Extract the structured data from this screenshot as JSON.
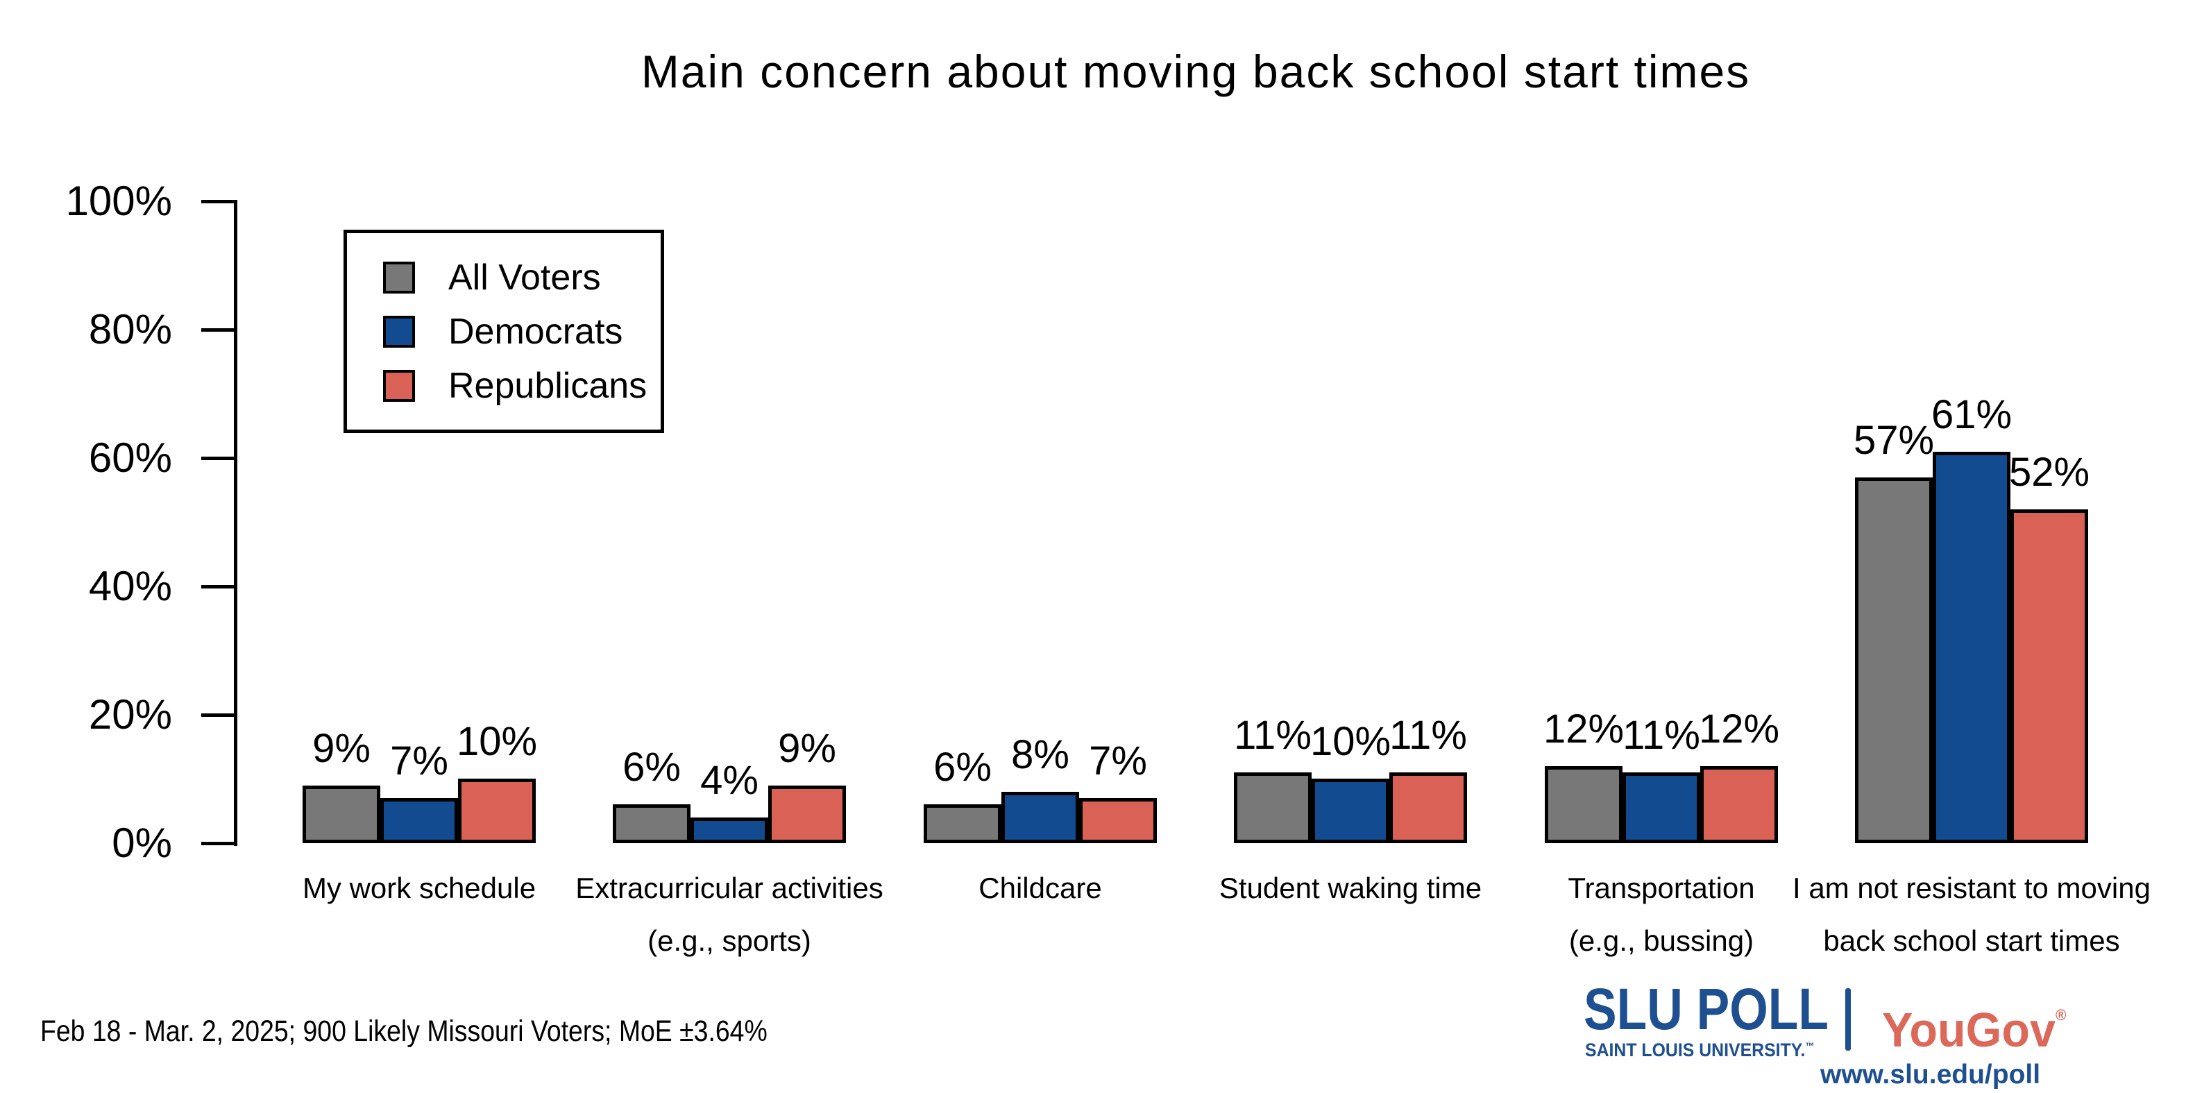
{
  "title": "Main concern about moving back school start times",
  "footer": {
    "note": "Feb 18 - Mar. 2, 2025; 900 Likely Missouri Voters; MoE ±3.64%"
  },
  "branding": {
    "slu": "SLU",
    "poll": "POLL",
    "slu_sub": "SAINT LOUIS UNIVERSITY.",
    "slu_sub_mark": "™",
    "partner": "YouGov",
    "partner_mark": "®",
    "url": "www.slu.edu/poll",
    "slu_blue": "#1D4F91",
    "yougov_red": "#DC685A"
  },
  "chart_data": {
    "type": "bar",
    "title": "Main concern about moving back school start times",
    "categories": [
      {
        "lines": [
          "My work schedule"
        ]
      },
      {
        "lines": [
          "Extracurricular activities",
          "(e.g., sports)"
        ]
      },
      {
        "lines": [
          "Childcare"
        ]
      },
      {
        "lines": [
          "Student waking time"
        ]
      },
      {
        "lines": [
          "Transportation",
          "(e.g., bussing)"
        ]
      },
      {
        "lines": [
          "I am not resistant to moving",
          "back school start times"
        ]
      }
    ],
    "series": [
      {
        "name": "All Voters",
        "color": "#787878",
        "values": [
          9,
          6,
          6,
          11,
          12,
          57
        ]
      },
      {
        "name": "Democrats",
        "color": "#124B8F",
        "values": [
          7,
          4,
          8,
          10,
          11,
          61
        ]
      },
      {
        "name": "Republicans",
        "color": "#DA6156",
        "values": [
          10,
          9,
          7,
          11,
          12,
          52
        ]
      }
    ],
    "value_label_suffix": "%",
    "ylim": [
      0,
      100
    ],
    "yticks": [
      {
        "value": 0,
        "label": "0%"
      },
      {
        "value": 20,
        "label": "20%"
      },
      {
        "value": 40,
        "label": "40%"
      },
      {
        "value": 60,
        "label": "60%"
      },
      {
        "value": 80,
        "label": "80%"
      },
      {
        "value": 100,
        "label": "100%"
      }
    ],
    "grid": false,
    "legend_position": "top-left",
    "bar_border_color": "#000000",
    "axis_color": "#000000"
  }
}
